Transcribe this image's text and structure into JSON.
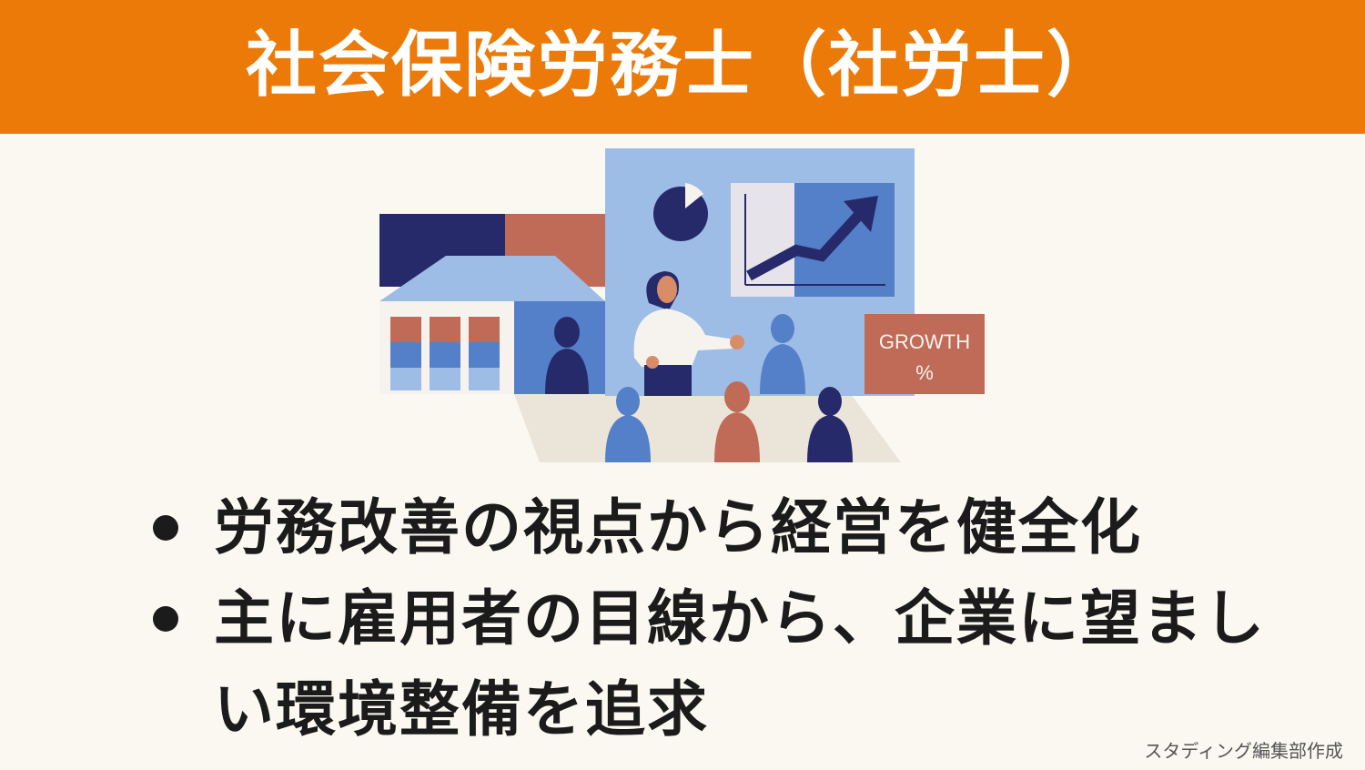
{
  "header": {
    "title": "社会保険労務士（社労士）"
  },
  "illustration": {
    "sign_line1": "GROWTH",
    "sign_line2": "%",
    "colors": {
      "light_blue": "#9dbce6",
      "mid_blue": "#5380c8",
      "navy": "#272a6a",
      "terracotta": "#c06b57",
      "beige": "#ebe4d9",
      "skin": "#d98c68",
      "white": "#f6f3ee"
    }
  },
  "bullets": [
    {
      "text": "労務改善の視点から経営を健全化"
    },
    {
      "text": "主に雇用者の目線から、企業に望ましい環境整備を追求"
    }
  ],
  "credit": "スタディング編集部作成"
}
